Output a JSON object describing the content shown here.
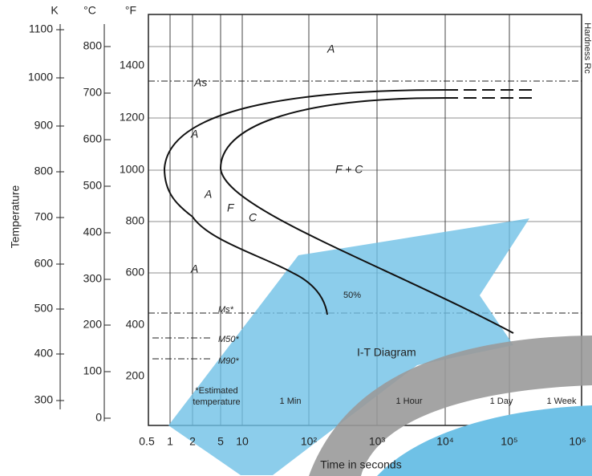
{
  "axes": {
    "k_unit": "K",
    "c_unit": "°C",
    "f_unit": "°F",
    "k_ticks": [
      "1100",
      "1000",
      "900",
      "800",
      "700",
      "600",
      "500",
      "400",
      "300"
    ],
    "c_ticks": [
      "800",
      "700",
      "600",
      "500",
      "400",
      "300",
      "200",
      "100",
      "0"
    ],
    "f_ticks": [
      "1400",
      "1200",
      "1000",
      "800",
      "600",
      "400",
      "200"
    ],
    "x_ticks": [
      "0.5",
      "1",
      "2",
      "5",
      "10",
      "10²",
      "10³",
      "10⁴",
      "10⁵",
      "10⁶"
    ],
    "y_title": "Temperature",
    "x_title": "Time in seconds",
    "right_title": "Hardness Rc"
  },
  "regions": [
    "A",
    "As",
    "A",
    "F + C",
    "A",
    "F",
    "C",
    "A",
    "50%"
  ],
  "marks": [
    "Ms*",
    "M50*",
    "M90*"
  ],
  "notes": {
    "diagram_name": "I-T Diagram",
    "estimated_1": "*Estimated",
    "estimated_2": "temperature",
    "times": [
      "1 Min",
      "1 Hour",
      "1 Day",
      "1 Week"
    ]
  }
}
